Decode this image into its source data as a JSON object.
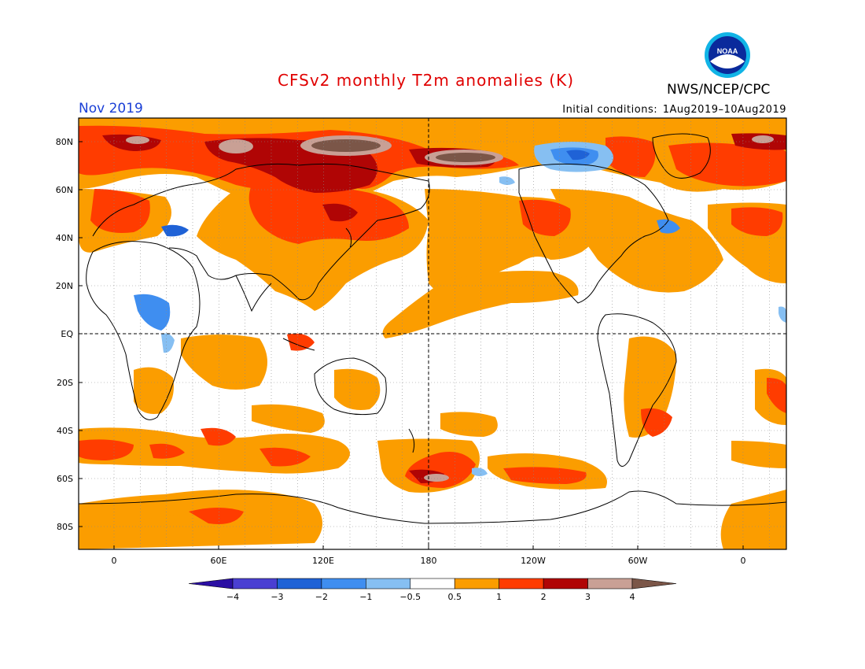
{
  "header": {
    "title": "CFSv2 monthly T2m anomalies (K)",
    "agency": "NWS/NCEP/CPC",
    "month": "Nov 2019",
    "ic_label": "Initial conditions:",
    "ic_value": "1Aug2019–10Aug2019",
    "logo_text": "NOAA"
  },
  "map": {
    "lat_labels": [
      "80N",
      "60N",
      "40N",
      "20N",
      "EQ",
      "20S",
      "40S",
      "60S",
      "80S"
    ],
    "lon_labels": [
      "0",
      "60E",
      "120E",
      "180",
      "120W",
      "60W",
      "0"
    ]
  },
  "legend": {
    "ticks": [
      "−4",
      "−3",
      "−2",
      "−1",
      "−0.5",
      "0.5",
      "1",
      "2",
      "3",
      "4"
    ],
    "colors": [
      "#2b0fa3",
      "#4a3fd2",
      "#1f62d6",
      "#3f8ef0",
      "#86bff2",
      "#ffffff",
      "#fb9d00",
      "#ff3c00",
      "#b00505",
      "#c9a095",
      "#7b5648"
    ]
  }
}
